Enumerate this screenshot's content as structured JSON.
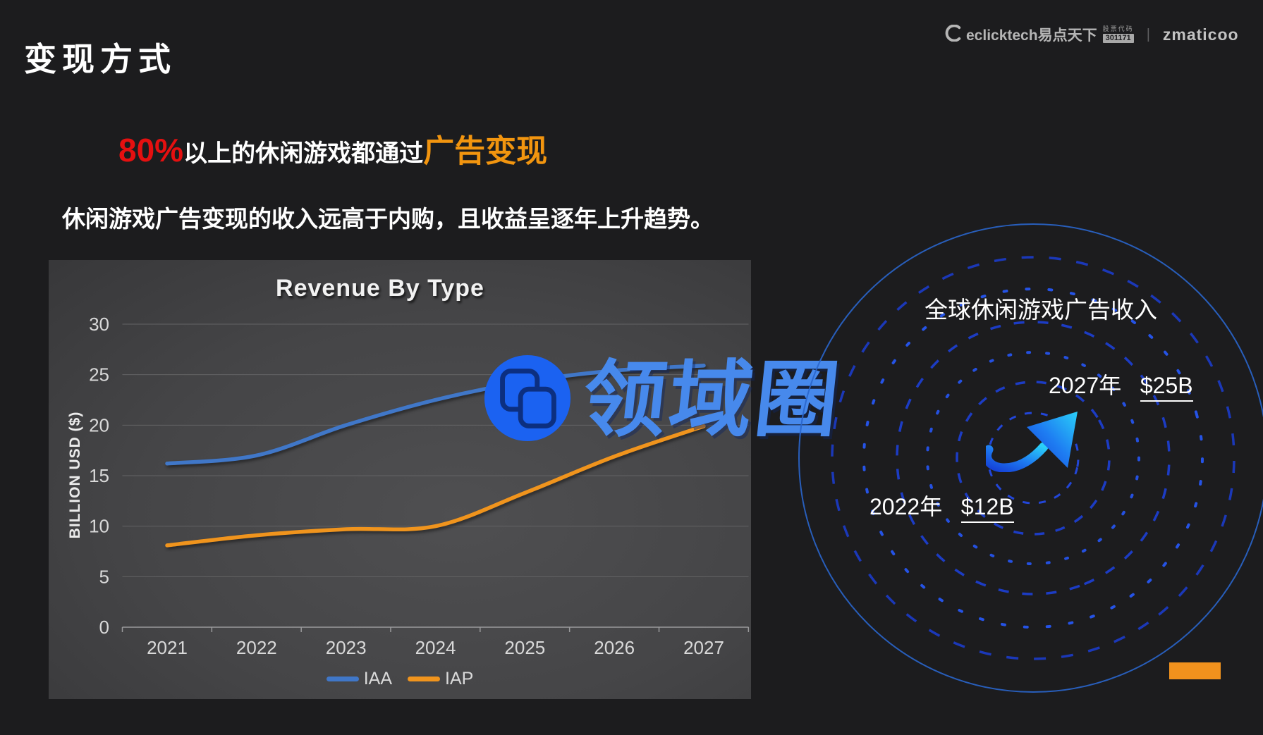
{
  "slide": {
    "title": "变现方式"
  },
  "header_logos": {
    "eclicktech": "eclicktech易点天下",
    "stock_label": "股票代码",
    "stock_code": "301171",
    "divider": "|",
    "zmaticoo": "zmaticoo"
  },
  "headline": {
    "stat": "80%",
    "text_white": "以上的休闲游戏都通过",
    "text_orange": "广告变现"
  },
  "subtitle": "休闲游戏广告变现的收入远高于内购，且收益呈逐年上升趋势。",
  "chart_data": {
    "type": "line",
    "title": "Revenue By Type",
    "ylabel": "BILLION USD ($)",
    "xlabel": "",
    "categories": [
      "2021",
      "2022",
      "2023",
      "2024",
      "2025",
      "2026",
      "2027"
    ],
    "series": [
      {
        "name": "IAA",
        "color": "#4077c8",
        "values": [
          16.2,
          17,
          20,
          22.5,
          24.3,
          25.4,
          25.9
        ]
      },
      {
        "name": "IAP",
        "color": "#f0941d",
        "values": [
          8.1,
          9.1,
          9.7,
          10,
          13.3,
          16.9,
          19.9
        ]
      }
    ],
    "ylim": [
      0,
      30
    ],
    "yticks": [
      0,
      5,
      10,
      15,
      20,
      25,
      30
    ],
    "grid": true,
    "legend_position": "bottom",
    "line_style": "smooth"
  },
  "watermark": {
    "text": "领域圈"
  },
  "infographic": {
    "title": "全球休闲游戏广告收入",
    "point_2027": {
      "year": "2027年",
      "value": "$25B"
    },
    "point_2022": {
      "year": "2022年",
      "value": "$12B"
    }
  },
  "colors": {
    "stat_red": "#e51010",
    "highlight_orange": "#f2950f",
    "accent_bar_orange": "#f2921d",
    "ring_blue": "#1d3fd2",
    "watermark_blue": "#4789ec",
    "arrow_gradient_start": "#1540d6",
    "arrow_gradient_end": "#2ad0f8"
  }
}
